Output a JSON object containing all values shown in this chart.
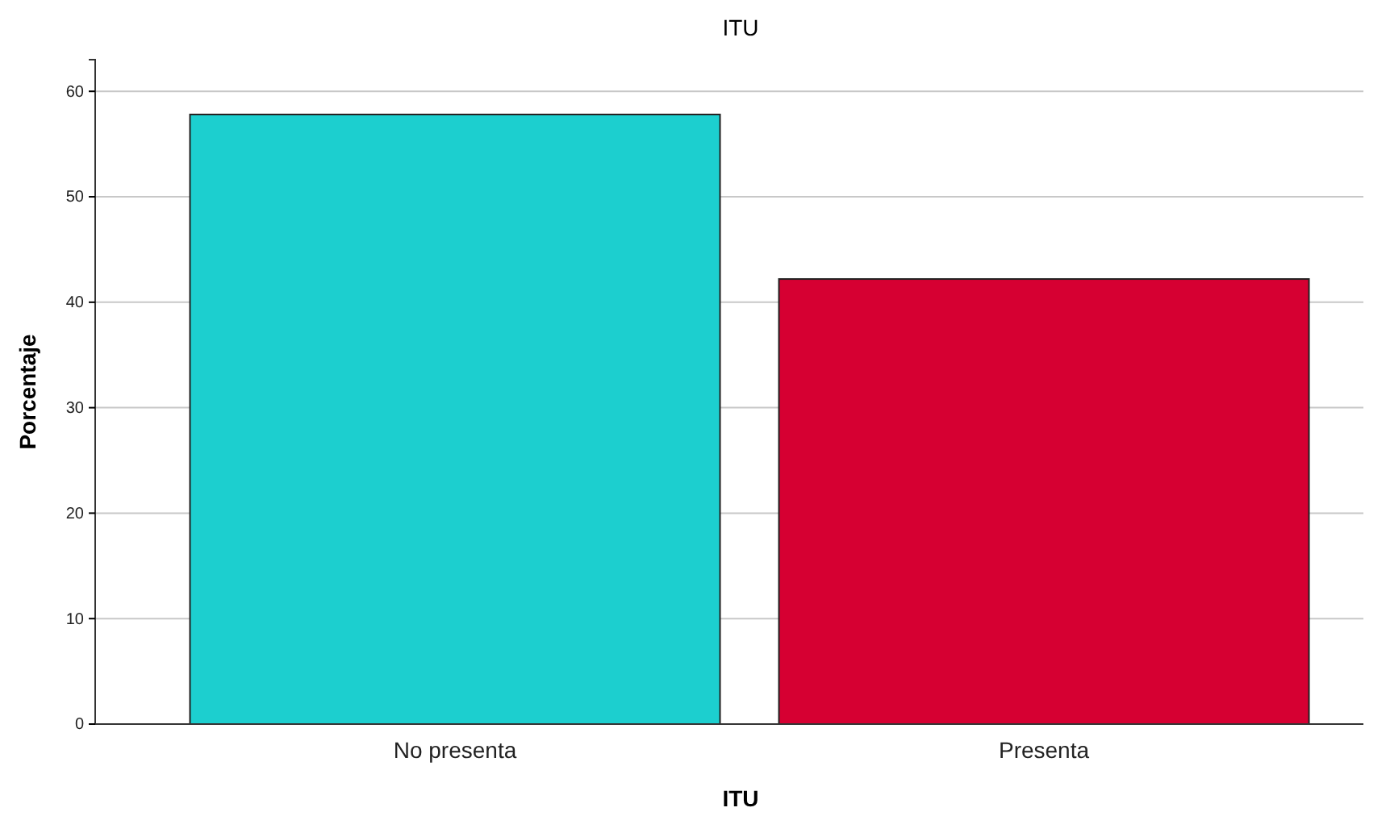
{
  "chart_data": {
    "type": "bar",
    "title": "ITU",
    "xlabel": "ITU",
    "ylabel": "Porcentaje",
    "categories": [
      "No presenta",
      "Presenta"
    ],
    "values": [
      57.8,
      42.2
    ],
    "colors": [
      "#1ccfcf",
      "#d60032"
    ],
    "ylim": [
      0,
      63
    ],
    "yticks": [
      0,
      10,
      20,
      30,
      40,
      50,
      60
    ],
    "grid": "y"
  }
}
